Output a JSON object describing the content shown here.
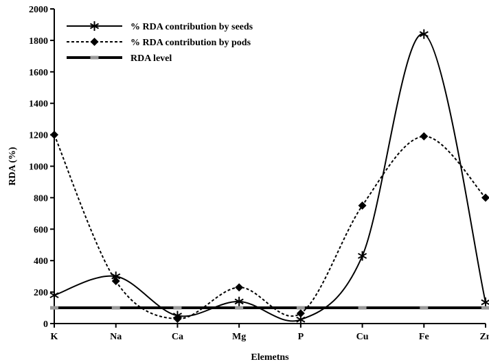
{
  "chart_data": {
    "type": "line",
    "title": "",
    "xlabel": "Elemetns",
    "ylabel": "RDA (%)",
    "ylim": [
      0,
      2000
    ],
    "yticks": [
      0,
      200,
      400,
      600,
      800,
      1000,
      1200,
      1400,
      1600,
      1800,
      2000
    ],
    "categories": [
      "K",
      "Na",
      "Ca",
      "Mg",
      "P",
      "Cu",
      "Fe",
      "Zn"
    ],
    "grid": false,
    "legend_position": "top-left",
    "series": [
      {
        "name": "% RDA contribution by seeds",
        "values": [
          180,
          300,
          50,
          140,
          25,
          430,
          1840,
          135
        ],
        "marker": "asterisk",
        "line_style": "solid",
        "color": "#000000"
      },
      {
        "name": "% RDA contribution by pods",
        "values": [
          1200,
          270,
          30,
          230,
          65,
          750,
          1190,
          800
        ],
        "marker": "diamond",
        "line_style": "dotted",
        "color": "#000000"
      },
      {
        "name": "RDA level",
        "values": [
          100,
          100,
          100,
          100,
          100,
          100,
          100,
          100
        ],
        "marker": "square-gray",
        "line_style": "thick-solid",
        "color": "#000000",
        "marker_color": "#999999"
      }
    ]
  }
}
